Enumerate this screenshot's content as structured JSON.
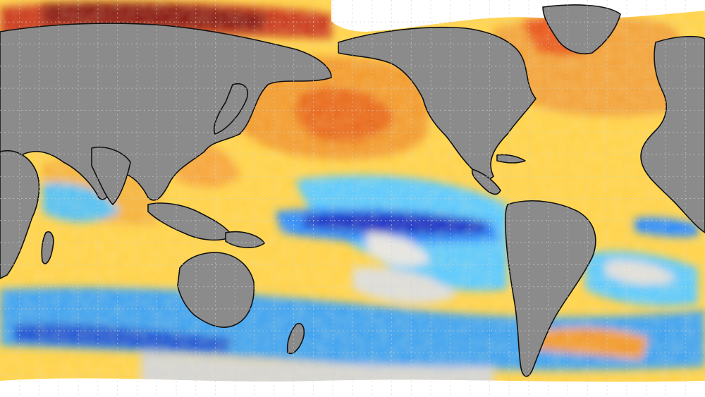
{
  "map": {
    "projection": "equirectangular",
    "center_longitude": 180,
    "subject": "sea-surface-temperature-anomaly",
    "colors": {
      "cold_strong": "#1a33c8",
      "cold": "#2b8bff",
      "cool": "#5cc9ff",
      "neutral": "#dcdcdc",
      "warm": "#ffd24a",
      "warm_mid": "#f8a332",
      "hot": "#e8541d",
      "very_hot": "#8a1e12",
      "land": "#8b8b8b",
      "sea_ice": "#ffffff"
    },
    "grid": {
      "shown": true,
      "style": "dashed"
    },
    "features": [
      {
        "name": "pacific-cold-tongue",
        "anomaly": "cold"
      },
      {
        "name": "north-pacific-warm-blob",
        "anomaly": "warm"
      },
      {
        "name": "arctic-siberian-coast",
        "anomaly": "very-warm"
      },
      {
        "name": "southern-ocean-belt",
        "anomaly": "mixed-cold"
      }
    ]
  }
}
